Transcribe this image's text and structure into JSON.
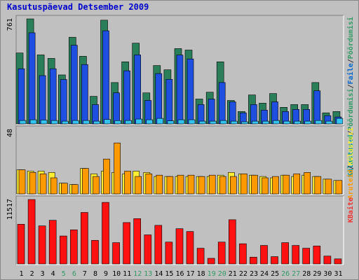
{
  "chart_data": {
    "type": "bar",
    "title": "Kasutuspäevad Detsember 2009",
    "categories": [
      "1",
      "2",
      "3",
      "4",
      "5",
      "6",
      "7",
      "8",
      "9",
      "10",
      "11",
      "12",
      "13",
      "14",
      "15",
      "16",
      "17",
      "18",
      "19",
      "20",
      "21",
      "22",
      "23",
      "24",
      "25",
      "26",
      "27",
      "28",
      "29",
      "30",
      "31"
    ],
    "weekend_categories": [
      "5",
      "6",
      "12",
      "13",
      "19",
      "20",
      "26",
      "27"
    ],
    "panels": [
      {
        "name": "top",
        "max_label": "761",
        "ymax": 761,
        "legend": [
          {
            "text": "Külastused",
            "color": "#009999"
          },
          {
            "text": "/",
            "color": "#333333"
          },
          {
            "text": "Pöördumisi",
            "color": "#339966"
          },
          {
            "text": "/",
            "color": "#333333"
          },
          {
            "text": "Faile",
            "color": "#0066cc"
          },
          {
            "text": "/",
            "color": "#333333"
          },
          {
            "text": "Pöördumisi",
            "color": "#339966"
          }
        ],
        "series": [
          {
            "name": "Pöördumisi",
            "color": "#2a7f5a",
            "values": [
              514,
              761,
              500,
              475,
              355,
              628,
              490,
              200,
              752,
              300,
              450,
              585,
              225,
              423,
              392,
              546,
              535,
              180,
              230,
              450,
              170,
              90,
              210,
              150,
              220,
              120,
              140,
              140,
              300,
              80,
              90
            ]
          },
          {
            "name": "Faile",
            "color": "#1f4fe0",
            "values": [
              400,
              660,
              350,
              400,
              322,
              570,
              430,
              140,
              675,
              225,
              385,
              500,
              170,
              365,
              323,
              499,
              471,
              140,
              180,
              300,
              160,
              80,
              140,
              100,
              160,
              90,
              105,
              105,
              240,
              60,
              50
            ]
          },
          {
            "name": "Külastused",
            "color": "#33c3f0",
            "values": [
              25,
              30,
              28,
              25,
              20,
              25,
              25,
              20,
              32,
              24,
              25,
              35,
              30,
              40,
              22,
              30,
              30,
              20,
              20,
              25,
              20,
              15,
              20,
              20,
              25,
              20,
              20,
              20,
              25,
              20,
              40
            ]
          }
        ]
      },
      {
        "name": "middle",
        "max_label": "48",
        "ymax": 48,
        "legend": [
          {
            "text": "Aruteid",
            "color": "#ff9900"
          },
          {
            "text": "/",
            "color": "#333333"
          },
          {
            "text": "Külastusi",
            "color": "#ffee33"
          }
        ],
        "series": [
          {
            "name": "Külastusi",
            "color": "#ffee33",
            "values": [
              18,
              17,
              17,
              16,
              8,
              7,
              19,
              15,
              17,
              16,
              15,
              17,
              16,
              13,
              13,
              13,
              13,
              13,
              13,
              14,
              16,
              15,
              14,
              13,
              12,
              14,
              13,
              14,
              13,
              11,
              10
            ]
          },
          {
            "name": "Aruteid",
            "color": "#ff9900",
            "values": [
              18,
              16,
              15,
              12,
              8,
              7,
              19,
              13,
              26,
              38,
              17,
              13,
              15,
              14,
              13,
              14,
              14,
              13,
              14,
              13,
              13,
              15,
              14,
              12,
              13,
              14,
              15,
              16,
              13,
              11,
              10
            ]
          }
        ]
      },
      {
        "name": "bottom",
        "max_label": "11517",
        "ymax": 11517,
        "legend": [
          {
            "text": "KBaite",
            "color": "#ee3333"
          }
        ],
        "series": [
          {
            "name": "KBaite",
            "color": "#ff1111",
            "values": [
              7100,
              11517,
              6800,
              7800,
              5000,
              6100,
              9200,
              4200,
              11000,
              3800,
              7400,
              8100,
              5200,
              6900,
              3900,
              6300,
              5800,
              2800,
              1000,
              3900,
              7900,
              3600,
              1200,
              3300,
              1300,
              3800,
              3300,
              2800,
              3200,
              1400,
              900
            ]
          }
        ]
      }
    ]
  }
}
